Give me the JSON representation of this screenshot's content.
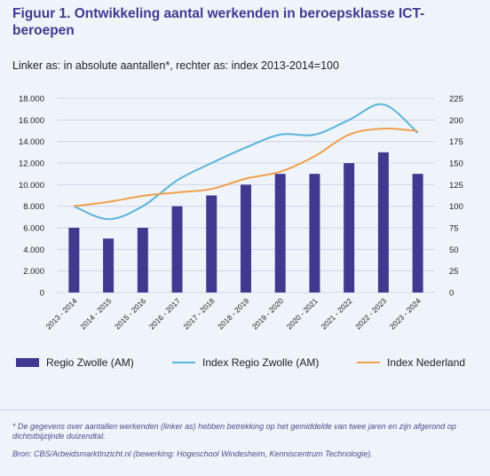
{
  "figure": {
    "title": "Figuur 1. Ontwikkeling aantal werkenden in beroepsklasse ICT-beroepen",
    "subtitle": "Linker as: in absolute aantallen*, rechter as: index 2013-2014=100",
    "footnote": "* De gegevens over aantallen werkenden (linker as) hebben betrekking op het gemiddelde van twee jaren en zijn afgerond op dichtstbijzijnde duizendtal.",
    "source": "Bron: CBS/ArbeidsmarktInzicht.nl (bewerking: Hogeschool Windesheim, Kenniscentrum Technologie)."
  },
  "legend": {
    "bar_label": "Regio Zwolle (AM)",
    "line1_label": "Index Regio Zwolle (AM)",
    "line2_label": "Index Nederland"
  },
  "colors": {
    "bar": "#3f3a8f",
    "line1": "#5ab4db",
    "line2": "#f0a04b",
    "grid": "#cfd7e6",
    "axis_text": "#222222"
  },
  "chart_data": {
    "type": "bar",
    "categories": [
      "2013 - 2014",
      "2014 - 2015",
      "2015 - 2016",
      "2016 - 2017",
      "2017 - 2018",
      "2018 - 2019",
      "2019 - 2020",
      "2020 - 2021",
      "2021 - 2022",
      "2022 - 2023",
      "2023 - 2024"
    ],
    "series": [
      {
        "name": "Regio Zwolle (AM)",
        "type": "bar",
        "axis": "left",
        "values": [
          6000,
          5000,
          6000,
          8000,
          9000,
          10000,
          11000,
          11000,
          12000,
          13000,
          11000
        ]
      },
      {
        "name": "Index Regio Zwolle (AM)",
        "type": "line",
        "axis": "right",
        "values": [
          100,
          85,
          100,
          130,
          150,
          168,
          183,
          183,
          200,
          218,
          185
        ]
      },
      {
        "name": "Index Nederland",
        "type": "line",
        "axis": "right",
        "values": [
          100,
          105,
          112,
          116,
          120,
          132,
          140,
          158,
          183,
          190,
          187
        ]
      }
    ],
    "y_left": {
      "ylim": [
        0,
        18000
      ],
      "ticks": [
        "0",
        "2.000",
        "4.000",
        "6.000",
        "8.000",
        "10.000",
        "12.000",
        "14.000",
        "16.000",
        "18.000"
      ]
    },
    "y_right": {
      "ylim": [
        0,
        225
      ],
      "ticks": [
        "0",
        "25",
        "50",
        "75",
        "100",
        "125",
        "150",
        "175",
        "200",
        "225"
      ]
    },
    "grid": true,
    "legend_position": "bottom"
  }
}
